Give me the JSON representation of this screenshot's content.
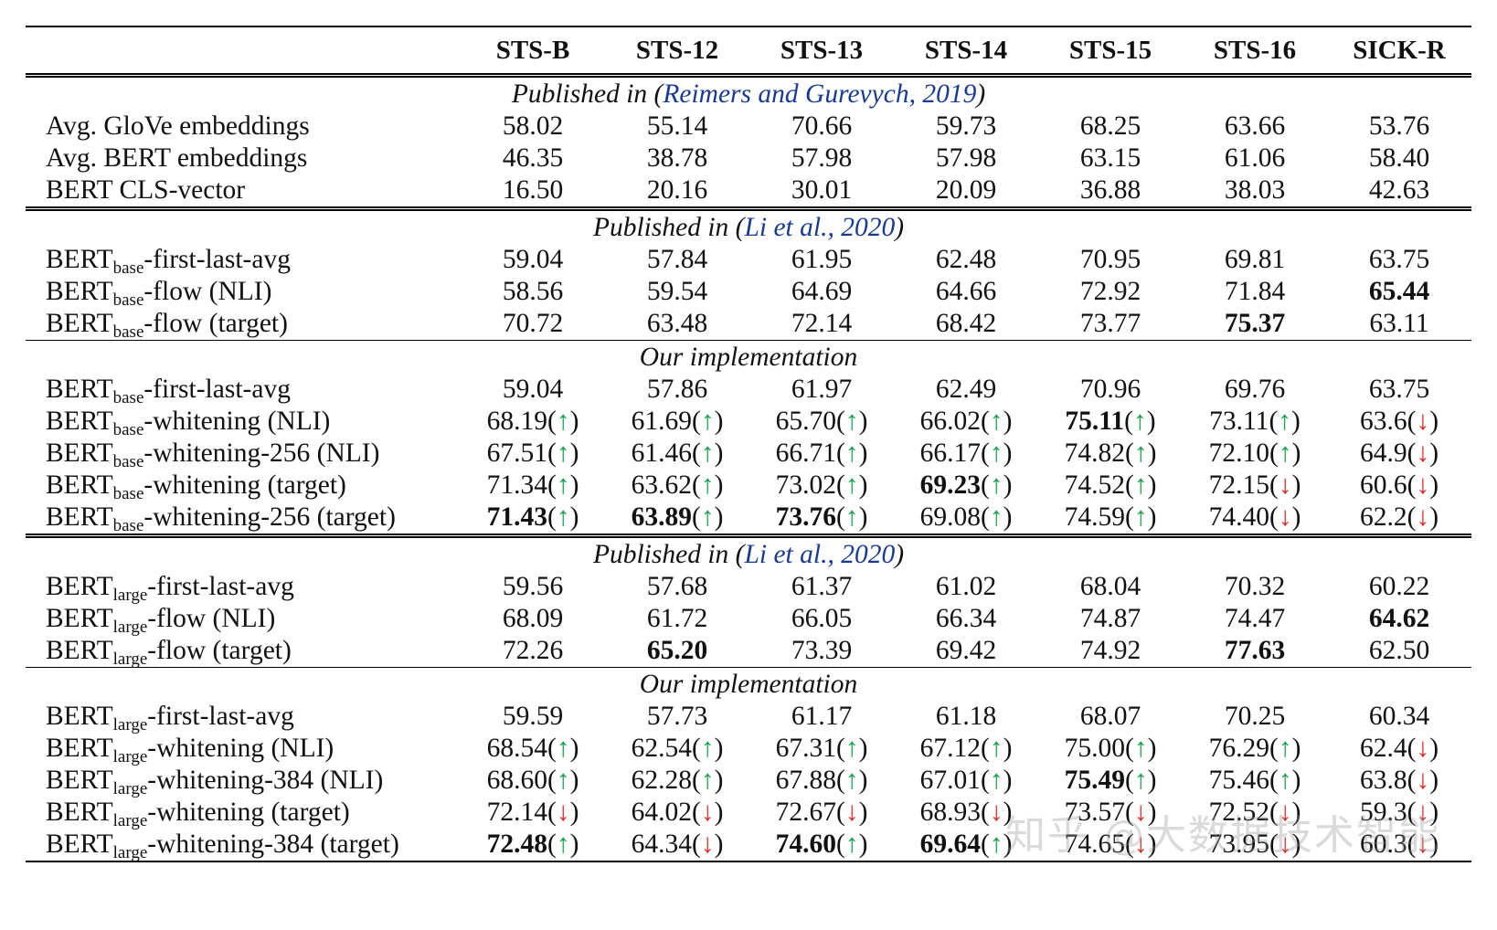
{
  "columns": [
    "STS-B",
    "STS-12",
    "STS-13",
    "STS-14",
    "STS-15",
    "STS-16",
    "SICK-R"
  ],
  "sections": [
    {
      "header_prefix": "Published in (",
      "header_cite": "Reimers and Gurevych, 2019",
      "header_suffix": ")",
      "rule": "double",
      "rows": [
        {
          "name": "Avg. GloVe embeddings",
          "cells": [
            {
              "v": "58.02"
            },
            {
              "v": "55.14"
            },
            {
              "v": "70.66"
            },
            {
              "v": "59.73"
            },
            {
              "v": "68.25"
            },
            {
              "v": "63.66"
            },
            {
              "v": "53.76"
            }
          ]
        },
        {
          "name": "Avg. BERT embeddings",
          "cells": [
            {
              "v": "46.35"
            },
            {
              "v": "38.78"
            },
            {
              "v": "57.98"
            },
            {
              "v": "57.98"
            },
            {
              "v": "63.15"
            },
            {
              "v": "61.06"
            },
            {
              "v": "58.40"
            }
          ]
        },
        {
          "name": "BERT CLS-vector",
          "cells": [
            {
              "v": "16.50"
            },
            {
              "v": "20.16"
            },
            {
              "v": "30.01"
            },
            {
              "v": "20.09"
            },
            {
              "v": "36.88"
            },
            {
              "v": "38.03"
            },
            {
              "v": "42.63"
            }
          ]
        }
      ]
    },
    {
      "header_prefix": "Published in (",
      "header_cite": "Li et al., 2020",
      "header_suffix": ")",
      "rule": "double",
      "rows": [
        {
          "name": "BERT",
          "sub": "base",
          "suffix": "-first-last-avg",
          "cells": [
            {
              "v": "59.04"
            },
            {
              "v": "57.84"
            },
            {
              "v": "61.95"
            },
            {
              "v": "62.48"
            },
            {
              "v": "70.95"
            },
            {
              "v": "69.81"
            },
            {
              "v": "63.75"
            }
          ]
        },
        {
          "name": "BERT",
          "sub": "base",
          "suffix": "-flow (NLI)",
          "cells": [
            {
              "v": "58.56"
            },
            {
              "v": "59.54"
            },
            {
              "v": "64.69"
            },
            {
              "v": "64.66"
            },
            {
              "v": "72.92"
            },
            {
              "v": "71.84"
            },
            {
              "v": "65.44",
              "b": true
            }
          ]
        },
        {
          "name": "BERT",
          "sub": "base",
          "suffix": "-flow (target)",
          "cells": [
            {
              "v": "70.72"
            },
            {
              "v": "63.48"
            },
            {
              "v": "72.14"
            },
            {
              "v": "68.42"
            },
            {
              "v": "73.77"
            },
            {
              "v": "75.37",
              "b": true
            },
            {
              "v": "63.11"
            }
          ]
        }
      ]
    },
    {
      "header_prefix": "Our implementation",
      "header_cite": "",
      "header_suffix": "",
      "rule": "single",
      "rows": [
        {
          "name": "BERT",
          "sub": "base",
          "suffix": "-first-last-avg",
          "cells": [
            {
              "v": "59.04"
            },
            {
              "v": "57.86"
            },
            {
              "v": "61.97"
            },
            {
              "v": "62.49"
            },
            {
              "v": "70.96"
            },
            {
              "v": "69.76"
            },
            {
              "v": "63.75"
            }
          ]
        },
        {
          "name": "BERT",
          "sub": "base",
          "suffix": "-whitening (NLI)",
          "cells": [
            {
              "v": "68.19",
              "d": "up"
            },
            {
              "v": "61.69",
              "d": "up"
            },
            {
              "v": "65.70",
              "d": "up"
            },
            {
              "v": "66.02",
              "d": "up"
            },
            {
              "v": "75.11",
              "d": "up",
              "b": true
            },
            {
              "v": "73.11",
              "d": "up"
            },
            {
              "v": "63.6",
              "d": "down"
            }
          ]
        },
        {
          "name": "BERT",
          "sub": "base",
          "suffix": "-whitening-256 (NLI)",
          "cells": [
            {
              "v": "67.51",
              "d": "up"
            },
            {
              "v": "61.46",
              "d": "up"
            },
            {
              "v": "66.71",
              "d": "up"
            },
            {
              "v": "66.17",
              "d": "up"
            },
            {
              "v": "74.82",
              "d": "up"
            },
            {
              "v": "72.10",
              "d": "up"
            },
            {
              "v": "64.9",
              "d": "down"
            }
          ]
        },
        {
          "name": "BERT",
          "sub": "base",
          "suffix": "-whitening (target)",
          "cells": [
            {
              "v": "71.34",
              "d": "up"
            },
            {
              "v": "63.62",
              "d": "up"
            },
            {
              "v": "73.02",
              "d": "up"
            },
            {
              "v": "69.23",
              "d": "up",
              "b": true
            },
            {
              "v": "74.52",
              "d": "up"
            },
            {
              "v": "72.15",
              "d": "down"
            },
            {
              "v": "60.6",
              "d": "down"
            }
          ]
        },
        {
          "name": "BERT",
          "sub": "base",
          "suffix": "-whitening-256 (target)",
          "cells": [
            {
              "v": "71.43",
              "d": "up",
              "b": true
            },
            {
              "v": "63.89",
              "d": "up",
              "b": true
            },
            {
              "v": "73.76",
              "d": "up",
              "b": true
            },
            {
              "v": "69.08",
              "d": "up"
            },
            {
              "v": "74.59",
              "d": "up"
            },
            {
              "v": "74.40",
              "d": "down"
            },
            {
              "v": "62.2",
              "d": "down"
            }
          ]
        }
      ]
    },
    {
      "header_prefix": "Published in (",
      "header_cite": "Li et al., 2020",
      "header_suffix": ")",
      "rule": "double",
      "rows": [
        {
          "name": "BERT",
          "sub": "large",
          "suffix": "-first-last-avg",
          "cells": [
            {
              "v": "59.56"
            },
            {
              "v": "57.68"
            },
            {
              "v": "61.37"
            },
            {
              "v": "61.02"
            },
            {
              "v": "68.04"
            },
            {
              "v": "70.32"
            },
            {
              "v": "60.22"
            }
          ]
        },
        {
          "name": "BERT",
          "sub": "large",
          "suffix": "-flow (NLI)",
          "cells": [
            {
              "v": "68.09"
            },
            {
              "v": "61.72"
            },
            {
              "v": "66.05"
            },
            {
              "v": "66.34"
            },
            {
              "v": "74.87"
            },
            {
              "v": "74.47"
            },
            {
              "v": "64.62",
              "b": true
            }
          ]
        },
        {
          "name": "BERT",
          "sub": "large",
          "suffix": "-flow (target)",
          "cells": [
            {
              "v": "72.26"
            },
            {
              "v": "65.20",
              "b": true
            },
            {
              "v": "73.39"
            },
            {
              "v": "69.42"
            },
            {
              "v": "74.92"
            },
            {
              "v": "77.63",
              "b": true
            },
            {
              "v": "62.50"
            }
          ]
        }
      ]
    },
    {
      "header_prefix": "Our implementation",
      "header_cite": "",
      "header_suffix": "",
      "rule": "single",
      "rows": [
        {
          "name": "BERT",
          "sub": "large",
          "suffix": "-first-last-avg",
          "cells": [
            {
              "v": "59.59"
            },
            {
              "v": "57.73"
            },
            {
              "v": "61.17"
            },
            {
              "v": "61.18"
            },
            {
              "v": "68.07"
            },
            {
              "v": "70.25"
            },
            {
              "v": "60.34"
            }
          ]
        },
        {
          "name": "BERT",
          "sub": "large",
          "suffix": "-whitening (NLI)",
          "cells": [
            {
              "v": "68.54",
              "d": "up"
            },
            {
              "v": "62.54",
              "d": "up"
            },
            {
              "v": "67.31",
              "d": "up"
            },
            {
              "v": "67.12",
              "d": "up"
            },
            {
              "v": "75.00",
              "d": "up"
            },
            {
              "v": "76.29",
              "d": "up"
            },
            {
              "v": "62.4",
              "d": "down"
            }
          ]
        },
        {
          "name": "BERT",
          "sub": "large",
          "suffix": "-whitening-384 (NLI)",
          "cells": [
            {
              "v": "68.60",
              "d": "up"
            },
            {
              "v": "62.28",
              "d": "up"
            },
            {
              "v": "67.88",
              "d": "up"
            },
            {
              "v": "67.01",
              "d": "up"
            },
            {
              "v": "75.49",
              "d": "up",
              "b": true
            },
            {
              "v": "75.46",
              "d": "up"
            },
            {
              "v": "63.8",
              "d": "down"
            }
          ]
        },
        {
          "name": "BERT",
          "sub": "large",
          "suffix": "-whitening (target)",
          "cells": [
            {
              "v": "72.14",
              "d": "down"
            },
            {
              "v": "64.02",
              "d": "down"
            },
            {
              "v": "72.67",
              "d": "down"
            },
            {
              "v": "68.93",
              "d": "down"
            },
            {
              "v": "73.57",
              "d": "down"
            },
            {
              "v": "72.52",
              "d": "down"
            },
            {
              "v": "59.3",
              "d": "down"
            }
          ]
        },
        {
          "name": "BERT",
          "sub": "large",
          "suffix": "-whitening-384 (target)",
          "cells": [
            {
              "v": "72.48",
              "d": "up",
              "b": true
            },
            {
              "v": "64.34",
              "d": "down"
            },
            {
              "v": "74.60",
              "d": "up",
              "b": true
            },
            {
              "v": "69.64",
              "d": "up",
              "b": true
            },
            {
              "v": "74.65",
              "d": "down"
            },
            {
              "v": "73.95",
              "d": "down"
            },
            {
              "v": "60.3",
              "d": "down"
            }
          ]
        }
      ]
    }
  ],
  "arrows": {
    "up": "↑",
    "down": "↓"
  },
  "colors": {
    "up": "#16a34a",
    "down": "#dc2626",
    "cite": "#1a3a8f"
  },
  "watermark": "知乎 @大数据技术智能"
}
